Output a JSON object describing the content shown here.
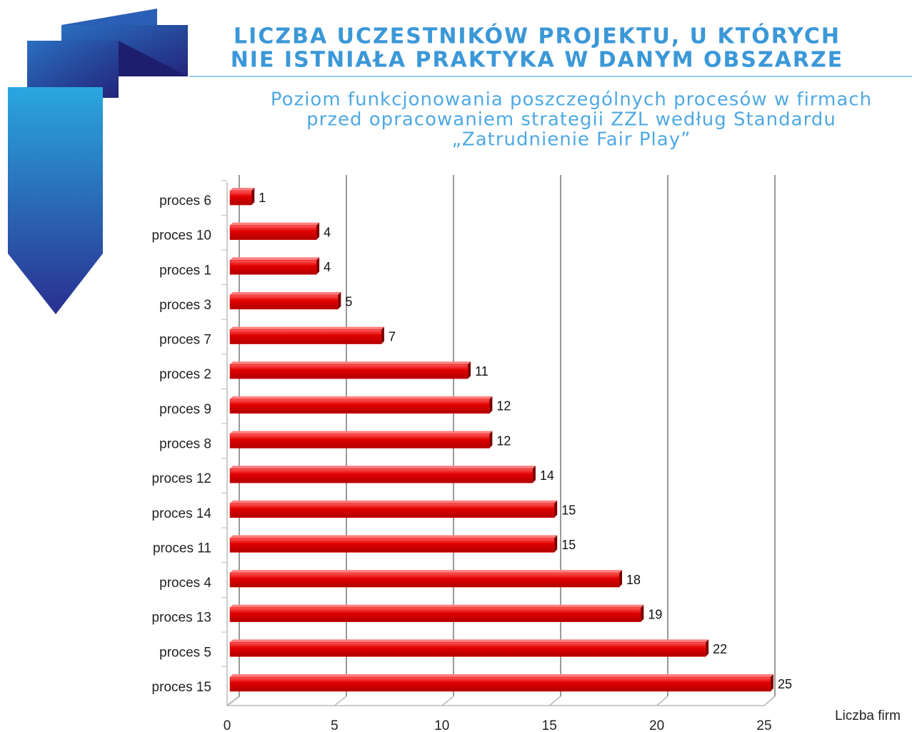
{
  "chart_data": {
    "type": "bar",
    "orientation": "horizontal",
    "title": [
      "LICZBA UCZESTNIKÓW PROJEKTU, U KTÓRYCH",
      "NIE ISTNIAŁA PRAKTYKA W DANYM OBSZARZE"
    ],
    "subtitle": [
      "Poziom funkcjonowania poszczególnych procesów w firmach",
      "przed opracowaniem strategii ZZL według Standardu",
      "„Zatrudnienie Fair Play”"
    ],
    "x_label": "Liczba firm",
    "categories": [
      "proces 6",
      "proces 10",
      "proces 1",
      "proces 3",
      "proces 7",
      "proces 2",
      "proces 9",
      "proces 8",
      "proces 12",
      "proces 14",
      "proces 11",
      "proces 4",
      "proces 13",
      "proces 5",
      "proces 15"
    ],
    "values": [
      1,
      4,
      4,
      5,
      7,
      11,
      12,
      12,
      14,
      15,
      15,
      18,
      19,
      22,
      25
    ],
    "color": "#e00000",
    "xlim": [
      0,
      25
    ],
    "xticks": [
      0,
      5,
      10,
      15,
      20,
      25
    ],
    "grid": true
  }
}
